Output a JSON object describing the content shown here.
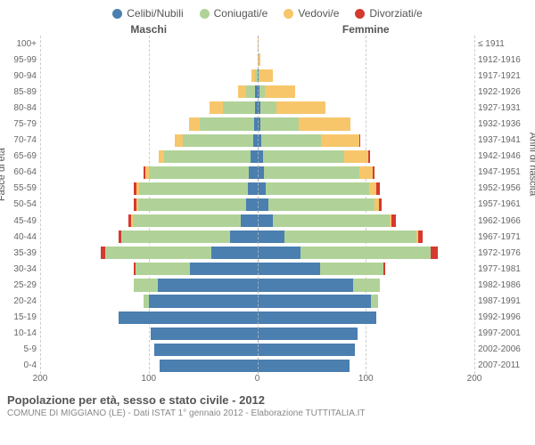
{
  "legend": [
    {
      "label": "Celibi/Nubili",
      "color": "#4a7fb0"
    },
    {
      "label": "Coniugati/e",
      "color": "#b0d298"
    },
    {
      "label": "Vedovi/e",
      "color": "#f7c66b"
    },
    {
      "label": "Divorziati/e",
      "color": "#d43a2f"
    }
  ],
  "headers": {
    "male": "Maschi",
    "female": "Femmine"
  },
  "axis_labels": {
    "left": "Fasce di età",
    "right": "Anni di nascita"
  },
  "x_max": 200,
  "x_ticks": [
    200,
    100,
    0,
    100,
    200
  ],
  "grid_values": [
    200,
    100,
    0,
    100,
    200
  ],
  "age_groups": [
    "100+",
    "95-99",
    "90-94",
    "85-89",
    "80-84",
    "75-79",
    "70-74",
    "65-69",
    "60-64",
    "55-59",
    "50-54",
    "45-49",
    "40-44",
    "35-39",
    "30-34",
    "25-29",
    "20-24",
    "15-19",
    "10-14",
    "5-9",
    "0-4"
  ],
  "birth_years": [
    "≤ 1911",
    "1912-1916",
    "1917-1921",
    "1922-1926",
    "1927-1931",
    "1932-1936",
    "1937-1941",
    "1942-1946",
    "1947-1951",
    "1952-1956",
    "1957-1961",
    "1962-1966",
    "1967-1971",
    "1972-1976",
    "1977-1981",
    "1982-1986",
    "1987-1991",
    "1992-1996",
    "1997-2001",
    "2002-2006",
    "2007-2011"
  ],
  "data": {
    "male": [
      {
        "c": 0,
        "m": 0,
        "w": 0,
        "d": 0
      },
      {
        "c": 0,
        "m": 0,
        "w": 0,
        "d": 0
      },
      {
        "c": 0,
        "m": 2,
        "w": 3,
        "d": 0
      },
      {
        "c": 2,
        "m": 8,
        "w": 8,
        "d": 0
      },
      {
        "c": 2,
        "m": 30,
        "w": 12,
        "d": 0
      },
      {
        "c": 3,
        "m": 50,
        "w": 10,
        "d": 0
      },
      {
        "c": 4,
        "m": 65,
        "w": 7,
        "d": 0
      },
      {
        "c": 6,
        "m": 80,
        "w": 5,
        "d": 0
      },
      {
        "c": 8,
        "m": 92,
        "w": 3,
        "d": 2
      },
      {
        "c": 9,
        "m": 100,
        "w": 2,
        "d": 3
      },
      {
        "c": 10,
        "m": 100,
        "w": 1,
        "d": 3
      },
      {
        "c": 15,
        "m": 100,
        "w": 1,
        "d": 3
      },
      {
        "c": 25,
        "m": 100,
        "w": 0,
        "d": 3
      },
      {
        "c": 42,
        "m": 98,
        "w": 0,
        "d": 4
      },
      {
        "c": 62,
        "m": 50,
        "w": 0,
        "d": 2
      },
      {
        "c": 92,
        "m": 22,
        "w": 0,
        "d": 0
      },
      {
        "c": 100,
        "m": 5,
        "w": 0,
        "d": 0
      },
      {
        "c": 128,
        "m": 0,
        "w": 0,
        "d": 0
      },
      {
        "c": 98,
        "m": 0,
        "w": 0,
        "d": 0
      },
      {
        "c": 95,
        "m": 0,
        "w": 0,
        "d": 0
      },
      {
        "c": 90,
        "m": 0,
        "w": 0,
        "d": 0
      }
    ],
    "female": [
      {
        "c": 0,
        "m": 0,
        "w": 1,
        "d": 0
      },
      {
        "c": 0,
        "m": 0,
        "w": 3,
        "d": 0
      },
      {
        "c": 1,
        "m": 1,
        "w": 12,
        "d": 0
      },
      {
        "c": 2,
        "m": 5,
        "w": 28,
        "d": 0
      },
      {
        "c": 3,
        "m": 15,
        "w": 45,
        "d": 0
      },
      {
        "c": 3,
        "m": 35,
        "w": 48,
        "d": 0
      },
      {
        "c": 4,
        "m": 55,
        "w": 35,
        "d": 1
      },
      {
        "c": 5,
        "m": 75,
        "w": 22,
        "d": 2
      },
      {
        "c": 6,
        "m": 88,
        "w": 12,
        "d": 2
      },
      {
        "c": 8,
        "m": 95,
        "w": 7,
        "d": 3
      },
      {
        "c": 10,
        "m": 98,
        "w": 4,
        "d": 3
      },
      {
        "c": 14,
        "m": 108,
        "w": 2,
        "d": 4
      },
      {
        "c": 25,
        "m": 122,
        "w": 1,
        "d": 4
      },
      {
        "c": 40,
        "m": 120,
        "w": 0,
        "d": 6
      },
      {
        "c": 58,
        "m": 58,
        "w": 0,
        "d": 2
      },
      {
        "c": 88,
        "m": 25,
        "w": 0,
        "d": 0
      },
      {
        "c": 105,
        "m": 6,
        "w": 0,
        "d": 0
      },
      {
        "c": 110,
        "m": 0,
        "w": 0,
        "d": 0
      },
      {
        "c": 92,
        "m": 0,
        "w": 0,
        "d": 0
      },
      {
        "c": 90,
        "m": 0,
        "w": 0,
        "d": 0
      },
      {
        "c": 85,
        "m": 0,
        "w": 0,
        "d": 0
      }
    ]
  },
  "footer": {
    "title": "Popolazione per età, sesso e stato civile - 2012",
    "sub": "COMUNE DI MIGGIANO (LE) - Dati ISTAT 1° gennaio 2012 - Elaborazione TUTTITALIA.IT"
  },
  "colors": {
    "celibi": "#4a7fb0",
    "coniugati": "#b0d298",
    "vedovi": "#f7c66b",
    "divorziati": "#d43a2f",
    "grid": "#cccccc",
    "bg": "#ffffff"
  }
}
